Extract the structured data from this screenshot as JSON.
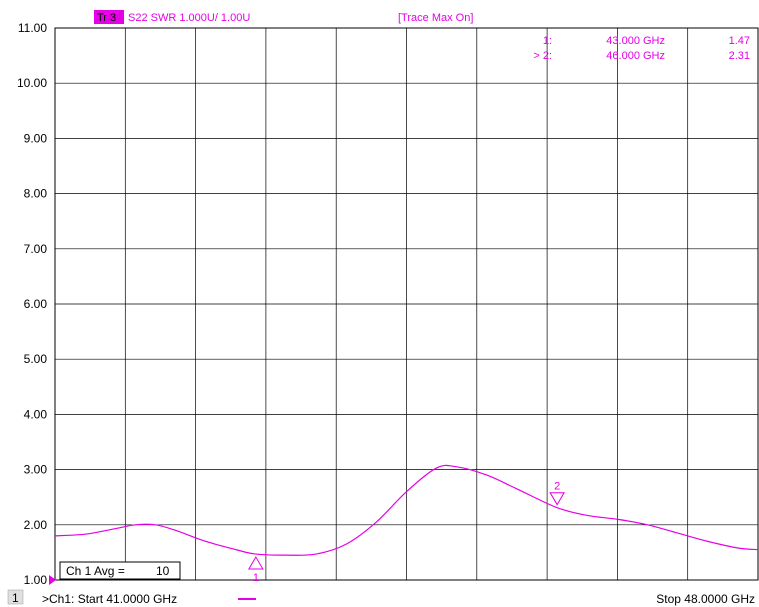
{
  "header": {
    "trace_tag": "Tr 3",
    "trace_desc": "S22 SWR 1.000U/ 1.00U",
    "status": "[Trace Max On]"
  },
  "markers": [
    {
      "label": "1",
      "list_prefix": "1:",
      "freq_text": "43.000 GHz",
      "value_text": "1.47"
    },
    {
      "label": "2",
      "list_prefix": "> 2:",
      "freq_text": "46.000 GHz",
      "value_text": "2.31"
    }
  ],
  "avg_box": {
    "label": "Ch 1 Avg =",
    "value": "10"
  },
  "footer": {
    "channel_num": "1",
    "start_text": ">Ch1:  Start  41.0000 GHz",
    "stop_text": "Stop  48.0000 GHz"
  },
  "colors": {
    "trace": "#e600e6",
    "grid": "#000000",
    "tag_bg": "#e600e6"
  },
  "chart_data": {
    "type": "line",
    "ylim": [
      1.0,
      11.0
    ],
    "xlim": [
      41.0,
      48.0
    ],
    "yticks": [
      "11.00",
      "10.00",
      "9.00",
      "8.00",
      "7.00",
      "6.00",
      "5.00",
      "4.00",
      "3.00",
      "2.00",
      "1.00"
    ],
    "grid": true,
    "series": [
      {
        "x": [
          41.0,
          41.3,
          41.6,
          41.8,
          42.0,
          42.2,
          42.5,
          42.8,
          43.0,
          43.3,
          43.6,
          43.9,
          44.2,
          44.5,
          44.8,
          45.0,
          45.3,
          45.6,
          46.0,
          46.3,
          46.6,
          46.9,
          47.2,
          47.5,
          47.8,
          48.0
        ],
        "y": [
          1.8,
          1.83,
          1.93,
          2.0,
          2.0,
          1.9,
          1.7,
          1.55,
          1.47,
          1.45,
          1.47,
          1.65,
          2.05,
          2.6,
          3.03,
          3.05,
          2.9,
          2.65,
          2.31,
          2.17,
          2.1,
          2.0,
          1.85,
          1.7,
          1.58,
          1.55
        ]
      }
    ],
    "markers": [
      {
        "x": 43.0,
        "y": 1.47,
        "style": "triangle-up"
      },
      {
        "x": 46.0,
        "y": 2.31,
        "style": "triangle-down"
      }
    ]
  }
}
